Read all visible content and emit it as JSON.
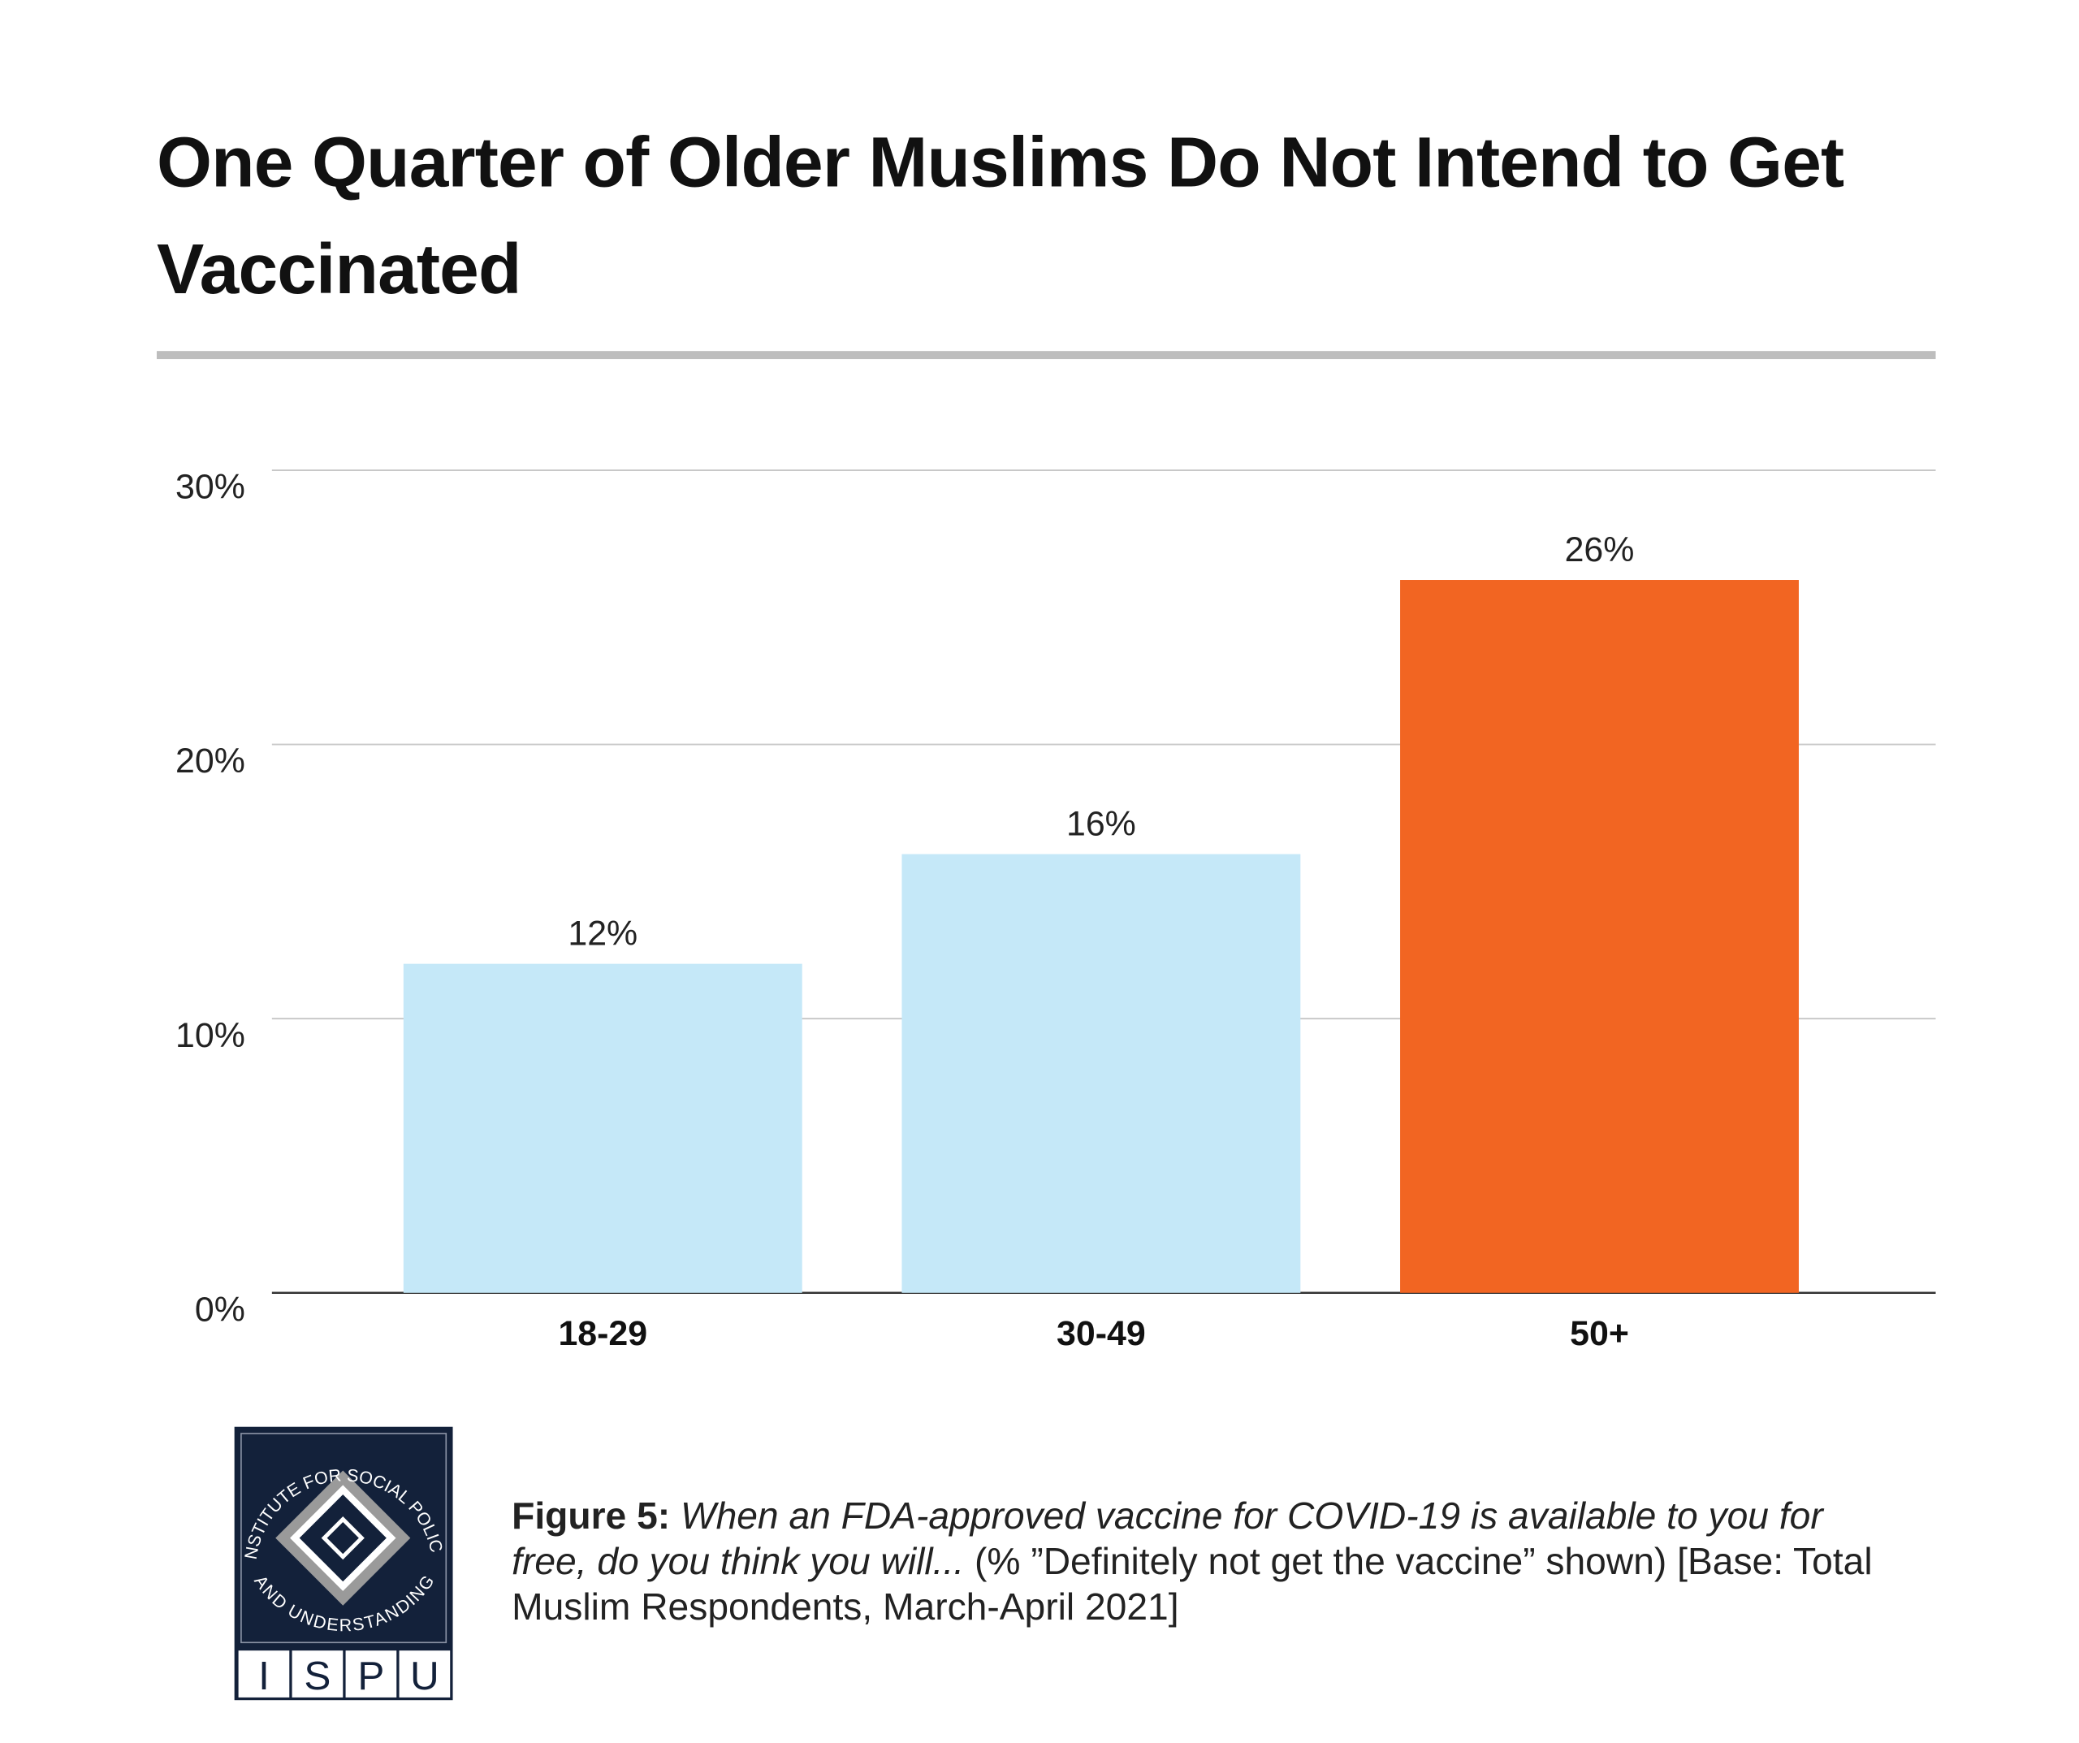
{
  "chart_data": {
    "type": "bar",
    "title": "One Quarter of Older Muslims Do Not Intend to Get Vaccinated",
    "categories": [
      "18-29",
      "30-49",
      "50+"
    ],
    "values": [
      12,
      16,
      26
    ],
    "value_labels": [
      "12%",
      "16%",
      "26%"
    ],
    "colors": [
      "#c5e8f8",
      "#c5e8f8",
      "#f26522"
    ],
    "ylim": [
      0,
      30
    ],
    "yticks": [
      {
        "value": 0,
        "label": "0%"
      },
      {
        "value": 10,
        "label": "10%"
      },
      {
        "value": 20,
        "label": "20%"
      },
      {
        "value": 30,
        "label": "30%"
      }
    ],
    "grid": true
  },
  "caption": {
    "label": "Figure 5:",
    "question": "When an FDA-approved vaccine for COVID-19 is available to you for free, do you think you will...",
    "note": "(% ”Definitely not get the vaccine” shown) [Base: Total Muslim Respondents, March-April 2021]"
  },
  "logo": {
    "ring_top": "INSTITUTE FOR SOCIAL POLICY",
    "ring_bottom": "AND UNDERSTANDING",
    "letters": [
      "I",
      "S",
      "P",
      "U"
    ]
  }
}
